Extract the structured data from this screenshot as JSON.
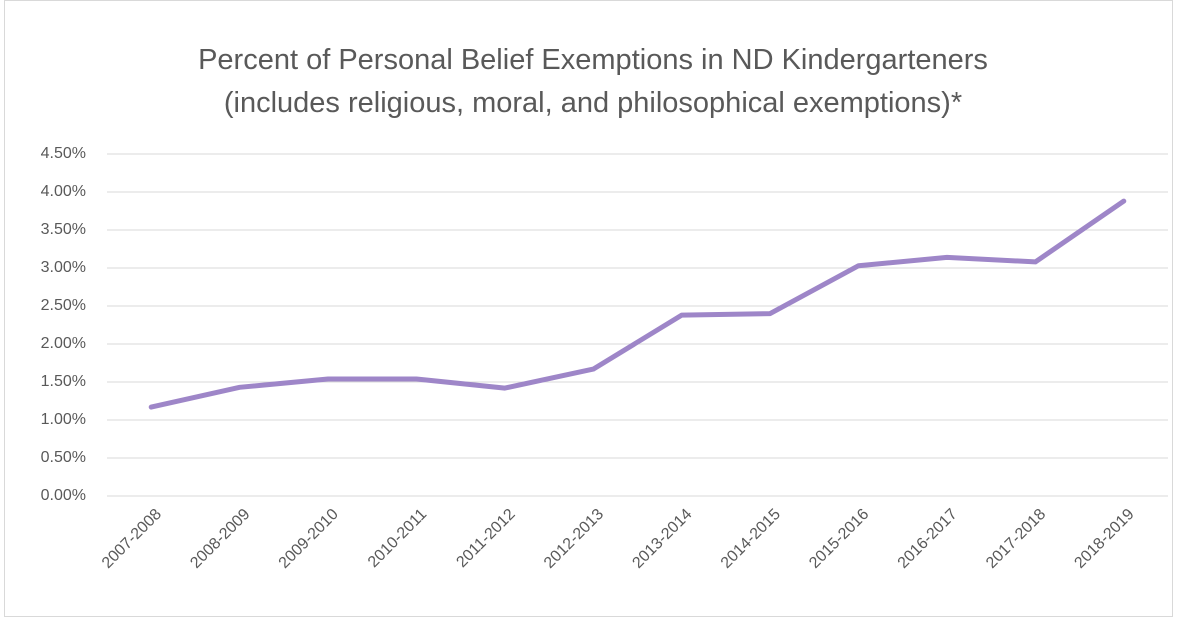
{
  "chart_data": {
    "type": "line",
    "title": "Percent of Personal Belief Exemptions in ND Kindergarteners",
    "subtitle": "(includes religious, moral, and philosophical exemptions)*",
    "categories": [
      "2007-2008",
      "2008-2009",
      "2009-2010",
      "2010-2011",
      "2011-2012",
      "2012-2013",
      "2013-2014",
      "2014-2015",
      "2015-2016",
      "2016-2017",
      "2017-2018",
      "2018-2019"
    ],
    "series": [
      {
        "name": "Percent of Personal Belief Exemptions",
        "color": "#9e86c8",
        "values": [
          1.17,
          1.43,
          1.54,
          1.54,
          1.42,
          1.67,
          2.38,
          2.4,
          3.03,
          3.14,
          3.08,
          3.88
        ]
      }
    ],
    "ylim": [
      0,
      4.5
    ],
    "yticks": [
      {
        "value": 0,
        "label": "0.00%"
      },
      {
        "value": 0.5,
        "label": "0.50%"
      },
      {
        "value": 1,
        "label": "1.00%"
      },
      {
        "value": 1.5,
        "label": "1.50%"
      },
      {
        "value": 2,
        "label": "2.00%"
      },
      {
        "value": 2.5,
        "label": "2.50%"
      },
      {
        "value": 3,
        "label": "3.00%"
      },
      {
        "value": 3.5,
        "label": "3.50%"
      },
      {
        "value": 4,
        "label": "4.00%"
      },
      {
        "value": 4.5,
        "label": "4.50%"
      }
    ],
    "grid": true
  }
}
